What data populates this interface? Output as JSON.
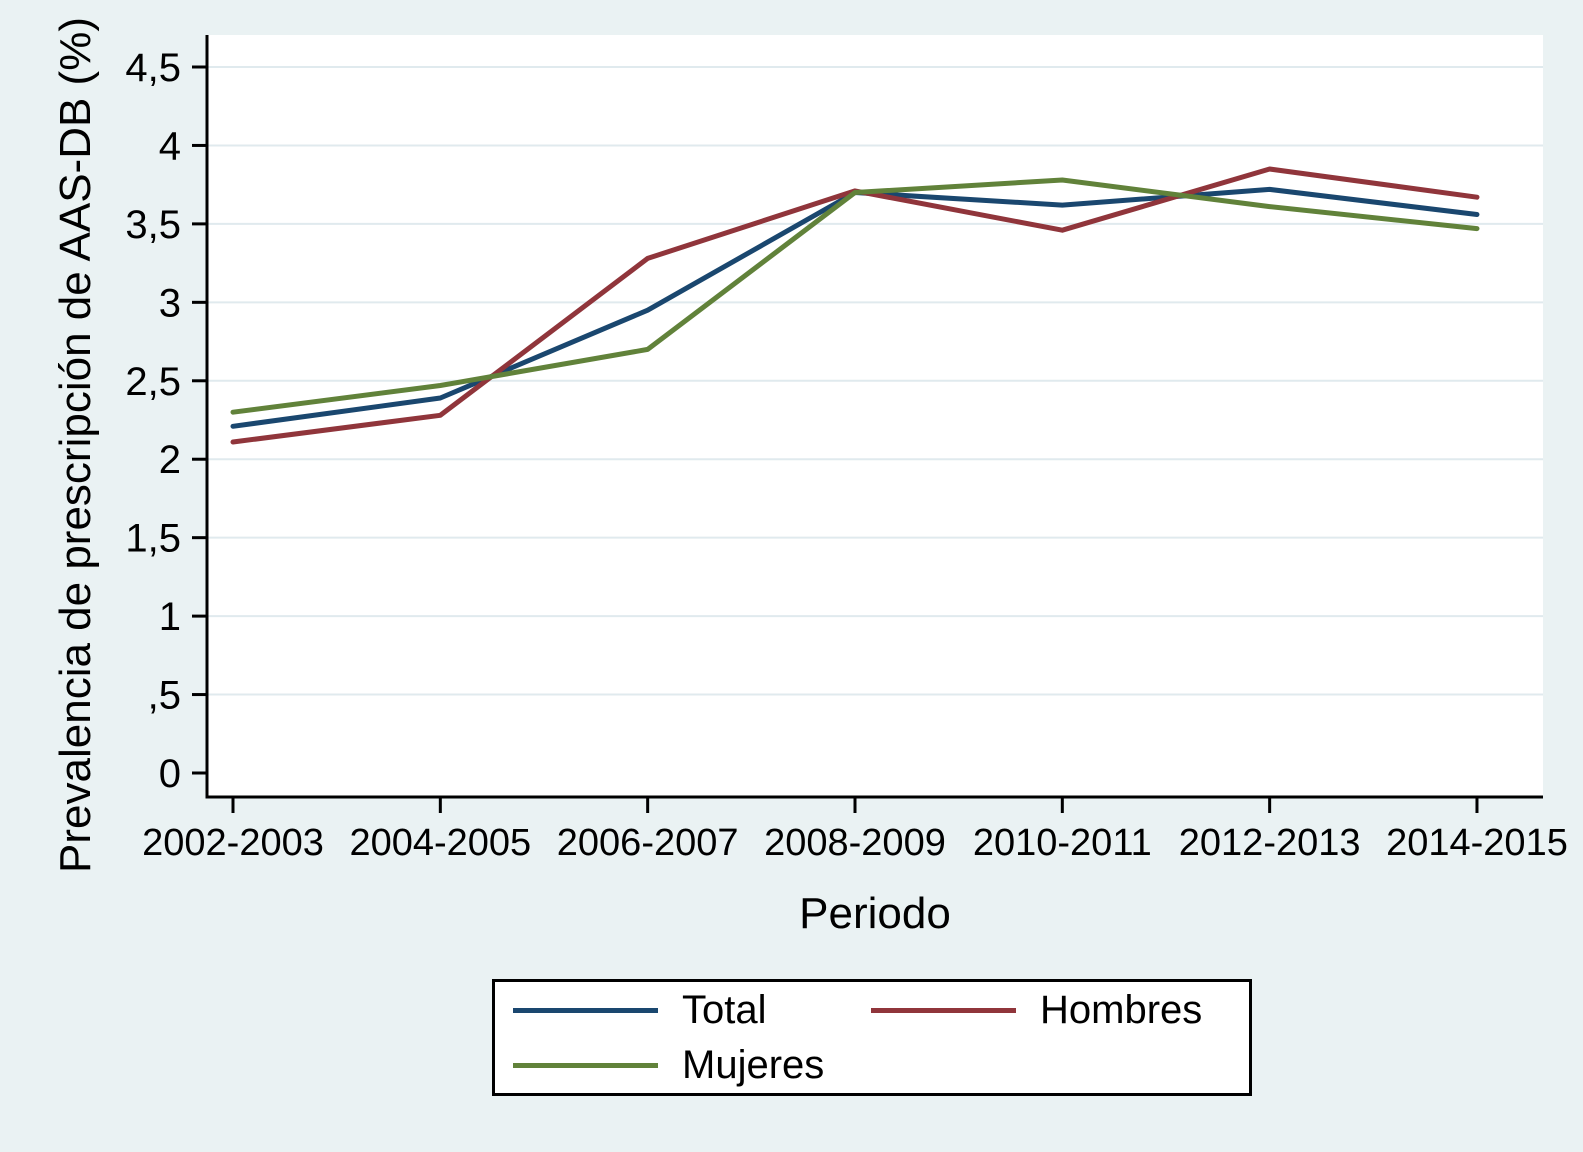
{
  "chart_data": {
    "type": "line",
    "title": "",
    "xlabel": "Periodo",
    "ylabel": "Prevalencia de prescripción de AAS-DB (%)",
    "categories": [
      "2002-2003",
      "2004-2005",
      "2006-2007",
      "2008-2009",
      "2010-2011",
      "2012-2013",
      "2014-2015"
    ],
    "series": [
      {
        "name": "Total",
        "color": "#1a476f",
        "values": [
          2.21,
          2.39,
          2.95,
          3.7,
          3.62,
          3.72,
          3.56
        ]
      },
      {
        "name": "Hombres",
        "color": "#90353b",
        "values": [
          2.11,
          2.28,
          3.28,
          3.71,
          3.46,
          3.85,
          3.67
        ]
      },
      {
        "name": "Mujeres",
        "color": "#61823a",
        "values": [
          2.3,
          2.47,
          2.7,
          3.7,
          3.78,
          3.61,
          3.47
        ]
      }
    ],
    "ylim": [
      0,
      4.5
    ],
    "ytick_step": 0.5,
    "ytick_labels": [
      "0",
      ",5",
      "1",
      "1,5",
      "2",
      "2,5",
      "3",
      "3,5",
      "4",
      "4,5"
    ],
    "decimal_separator": ",",
    "grid": true,
    "legend_position": "bottom",
    "legend_rows": [
      [
        "Total",
        "Hombres"
      ],
      [
        "Mujeres"
      ]
    ]
  },
  "colors": {
    "background": "#eaf2f3",
    "plot_background": "#ffffff",
    "gridline": "#e0eaee",
    "axis": "#000000"
  }
}
